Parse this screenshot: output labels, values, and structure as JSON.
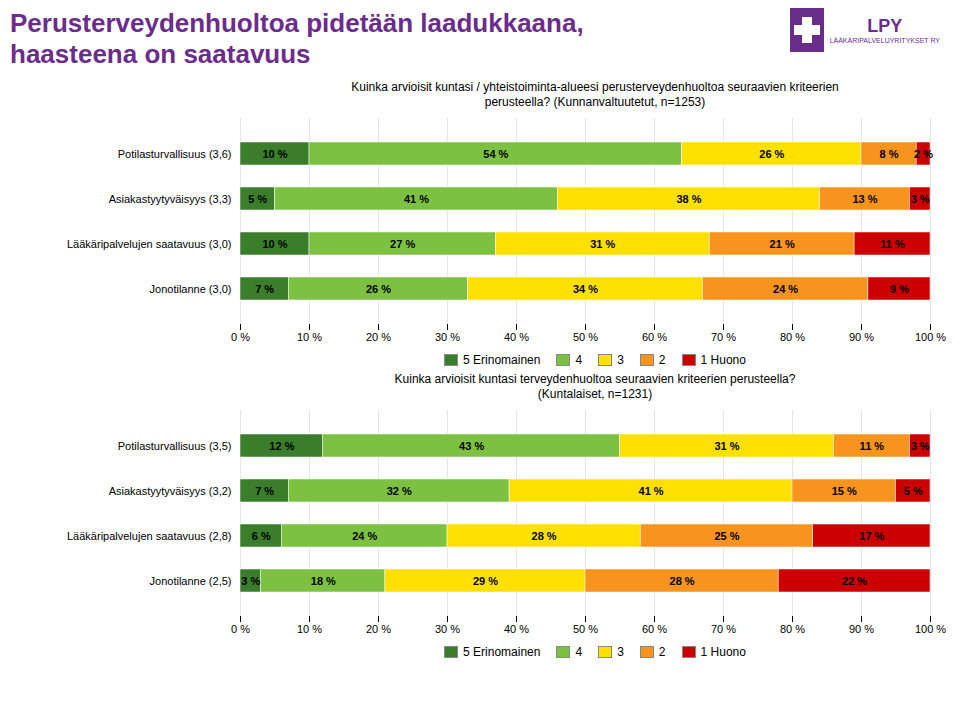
{
  "title": "Perusterveydenhuoltoa pidetään laadukkaana,\nhaasteena on saatavuus",
  "annotations": [
    "LPY",
    "LÄÄKÄRIPALVELUYRITYKSET RY"
  ],
  "chart_data": [
    {
      "type": "bar",
      "subtitle": "Kuinka arvioisit kuntasi / yhteistoiminta-alueesi perusterveydenhuoltoa seuraavien kriteerien\nperusteella? (Kunnanvaltuutetut, n=1253)",
      "orientation": "horizontal",
      "stacked": true,
      "data_labels": true,
      "grid": true,
      "legend": "bottom",
      "categories": [
        "Potilasturvallisuus (3,6)",
        "Asiakastyytyväisyys (3,3)",
        "Lääkäripalvelujen saatavuus (3,0)",
        "Jonotilanne (3,0)"
      ],
      "series": [
        {
          "name": "5 Erinomainen",
          "color": "#3A7D2A",
          "values": [
            10,
            5,
            10,
            7
          ],
          "value_labels": [
            "10 %",
            "5 %",
            "10 %",
            "7 %"
          ]
        },
        {
          "name": "4",
          "color": "#7DC142",
          "values": [
            54,
            41,
            27,
            26
          ],
          "value_labels": [
            "54 %",
            "41 %",
            "27 %",
            "26 %"
          ]
        },
        {
          "name": "3",
          "color": "#FFE000",
          "values": [
            26,
            38,
            31,
            34
          ],
          "value_labels": [
            "26 %",
            "38 %",
            "31 %",
            "34 %"
          ]
        },
        {
          "name": "2",
          "color": "#F7941D",
          "values": [
            8,
            13,
            21,
            24
          ],
          "value_labels": [
            "8 %",
            "13 %",
            "21 %",
            "24 %"
          ]
        },
        {
          "name": "1 Huono",
          "color": "#CC0000",
          "values": [
            2,
            3,
            11,
            9
          ],
          "value_labels": [
            "2 %",
            "3 %",
            "11 %",
            "9 %"
          ]
        }
      ],
      "xlim": [
        0,
        100
      ],
      "xticks": [
        {
          "value": 0,
          "label": "0 %"
        },
        {
          "value": 10,
          "label": "10 %"
        },
        {
          "value": 20,
          "label": "20 %"
        },
        {
          "value": 30,
          "label": "30 %"
        },
        {
          "value": 40,
          "label": "40 %"
        },
        {
          "value": 50,
          "label": "50 %"
        },
        {
          "value": 60,
          "label": "60 %"
        },
        {
          "value": 70,
          "label": "70 %"
        },
        {
          "value": 80,
          "label": "80 %"
        },
        {
          "value": 90,
          "label": "90 %"
        },
        {
          "value": 100,
          "label": "100 %"
        }
      ]
    },
    {
      "type": "bar",
      "subtitle": "Kuinka arvioisit kuntasi terveydenhuoltoa seuraavien kriteerien perusteella?\n(Kuntalaiset, n=1231)",
      "orientation": "horizontal",
      "stacked": true,
      "data_labels": true,
      "grid": true,
      "legend": "bottom",
      "categories": [
        "Potilasturvallisuus (3,5)",
        "Asiakastyytyväisyys (3,2)",
        "Lääkäripalvelujen saatavuus (2,8)",
        "Jonotilanne (2,5)"
      ],
      "series": [
        {
          "name": "5 Erinomainen",
          "color": "#3A7D2A",
          "values": [
            12,
            7,
            6,
            3
          ],
          "value_labels": [
            "12 %",
            "7 %",
            "6 %",
            "3 %"
          ]
        },
        {
          "name": "4",
          "color": "#7DC142",
          "values": [
            43,
            32,
            24,
            18
          ],
          "value_labels": [
            "43 %",
            "32 %",
            "24 %",
            "18 %"
          ]
        },
        {
          "name": "3",
          "color": "#FFE000",
          "values": [
            31,
            41,
            28,
            29
          ],
          "value_labels": [
            "31 %",
            "41 %",
            "28 %",
            "29 %"
          ]
        },
        {
          "name": "2",
          "color": "#F7941D",
          "values": [
            11,
            15,
            25,
            28
          ],
          "value_labels": [
            "11 %",
            "15 %",
            "25 %",
            "28 %"
          ]
        },
        {
          "name": "1 Huono",
          "color": "#CC0000",
          "values": [
            3,
            5,
            17,
            22
          ],
          "value_labels": [
            "3 %",
            "5 %",
            "17 %",
            "22 %"
          ]
        }
      ],
      "xlim": [
        0,
        100
      ],
      "xticks": [
        {
          "value": 0,
          "label": "0 %"
        },
        {
          "value": 10,
          "label": "10 %"
        },
        {
          "value": 20,
          "label": "20 %"
        },
        {
          "value": 30,
          "label": "30 %"
        },
        {
          "value": 40,
          "label": "40 %"
        },
        {
          "value": 50,
          "label": "50 %"
        },
        {
          "value": 60,
          "label": "60 %"
        },
        {
          "value": 70,
          "label": "70 %"
        },
        {
          "value": 80,
          "label": "80 %"
        },
        {
          "value": 90,
          "label": "90 %"
        },
        {
          "value": 100,
          "label": "100 %"
        }
      ]
    }
  ]
}
